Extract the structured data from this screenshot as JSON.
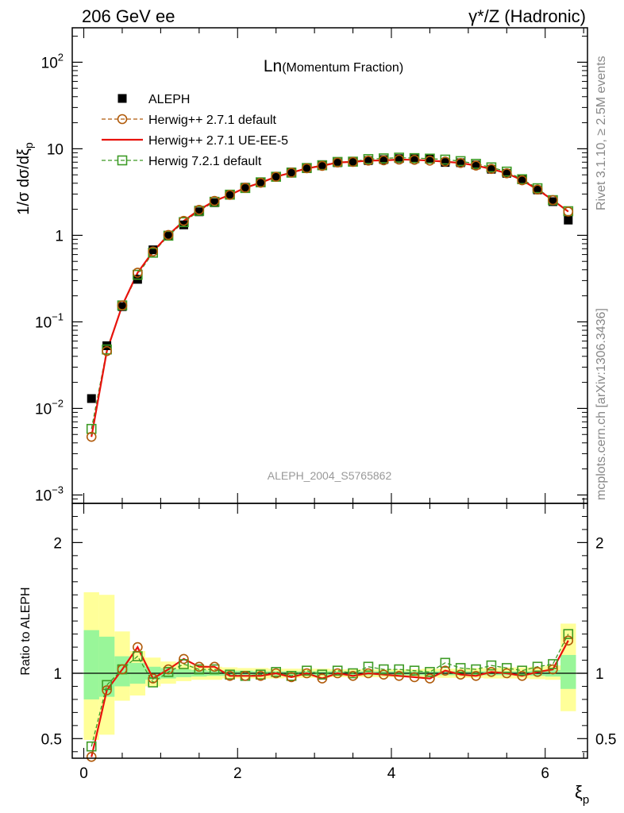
{
  "header": {
    "left": "206 GeV ee",
    "right": "γ*/Z (Hadronic)"
  },
  "side_labels": {
    "rivet": "Rivet 3.1.10, ≥ 2.5M events",
    "mcplots": "mcplots.cern.ch [arXiv:1306.3436]"
  },
  "plot_title": {
    "main": "Ln",
    "sub": "(Momentum Fraction)"
  },
  "watermark": "ALEPH_2004_S5765862",
  "colors": {
    "data": "#000000",
    "herwig_default": "#b05a0a",
    "herwig_ueee5": "#e8120c",
    "herwig7": "#3d9b25",
    "band_stat": "#99f699",
    "band_total": "#ffff99"
  },
  "chart_data": [
    {
      "type": "line",
      "panel": "main",
      "ylabel": "1/σ dσ/dξp",
      "yscale": "log",
      "ylim": [
        0.0008,
        250
      ],
      "xlim": [
        -0.15,
        6.55
      ],
      "y_ticklabels": [
        "10^-3",
        "10^-2",
        "10^-1",
        "1",
        "10",
        "10^2"
      ],
      "x": [
        0.1,
        0.3,
        0.5,
        0.7,
        0.9,
        1.1,
        1.3,
        1.5,
        1.7,
        1.9,
        2.1,
        2.3,
        2.5,
        2.7,
        2.9,
        3.1,
        3.3,
        3.5,
        3.7,
        3.9,
        4.1,
        4.3,
        4.5,
        4.7,
        4.9,
        5.1,
        5.3,
        5.5,
        5.7,
        5.9,
        6.1,
        6.3
      ],
      "series": [
        {
          "name": "ALEPH",
          "style": "data",
          "values": [
            0.013,
            0.053,
            0.15,
            0.31,
            0.68,
            0.98,
            1.32,
            1.87,
            2.38,
            2.98,
            3.6,
            4.12,
            4.72,
            5.4,
            5.9,
            6.55,
            6.9,
            7.1,
            7.3,
            7.5,
            7.7,
            7.65,
            7.6,
            6.95,
            6.9,
            6.5,
            5.8,
            5.2,
            4.4,
            3.35,
            2.45,
            1.5
          ]
        },
        {
          "name": "Herwig++ 2.7.1 default",
          "style": "circle-dashed",
          "values": [
            0.0047,
            0.046,
            0.155,
            0.37,
            0.65,
            1.01,
            1.47,
            1.97,
            2.5,
            2.93,
            3.55,
            4.05,
            4.75,
            5.3,
            5.95,
            6.35,
            6.95,
            7.05,
            7.3,
            7.35,
            7.5,
            7.45,
            7.3,
            7.1,
            6.85,
            6.4,
            5.85,
            5.2,
            4.33,
            3.38,
            2.55,
            1.88
          ]
        },
        {
          "name": "Herwig++ 2.7.1 UE-EE-5",
          "style": "solid",
          "values": [
            0.0047,
            0.046,
            0.155,
            0.37,
            0.65,
            1.01,
            1.47,
            1.97,
            2.5,
            2.93,
            3.55,
            4.05,
            4.75,
            5.3,
            5.95,
            6.35,
            6.95,
            7.05,
            7.3,
            7.35,
            7.5,
            7.45,
            7.3,
            7.1,
            6.85,
            6.4,
            5.85,
            5.2,
            4.33,
            3.38,
            2.55,
            1.88
          ]
        },
        {
          "name": "Herwig 7.2.1 default",
          "style": "square-dashed",
          "values": [
            0.0058,
            0.048,
            0.155,
            0.35,
            0.63,
            0.99,
            1.42,
            1.92,
            2.44,
            2.95,
            3.52,
            4.1,
            4.75,
            5.3,
            6.0,
            6.45,
            7.05,
            7.1,
            7.6,
            7.75,
            7.9,
            7.8,
            7.7,
            7.5,
            7.2,
            6.7,
            6.1,
            5.45,
            4.45,
            3.5,
            2.55,
            1.9
          ]
        }
      ]
    },
    {
      "type": "line",
      "panel": "ratio",
      "ylabel": "Ratio to ALEPH",
      "xlabel": "ξp",
      "ylim": [
        0.35,
        2.3
      ],
      "xlim": [
        -0.15,
        6.55
      ],
      "y_ticklabels": [
        "0.5",
        "1",
        "2"
      ],
      "x_ticklabels": [
        "0",
        "2",
        "4",
        "6"
      ],
      "x": [
        0.1,
        0.3,
        0.5,
        0.7,
        0.9,
        1.1,
        1.3,
        1.5,
        1.7,
        1.9,
        2.1,
        2.3,
        2.5,
        2.7,
        2.9,
        3.1,
        3.3,
        3.5,
        3.7,
        3.9,
        4.1,
        4.3,
        4.5,
        4.7,
        4.9,
        5.1,
        5.3,
        5.5,
        5.7,
        5.9,
        6.1,
        6.3
      ],
      "bands": {
        "total_lo": [
          0.49,
          0.53,
          0.79,
          0.83,
          0.9,
          0.92,
          0.94,
          0.95,
          0.95,
          0.96,
          0.96,
          0.96,
          0.96,
          0.965,
          0.965,
          0.965,
          0.97,
          0.97,
          0.97,
          0.97,
          0.97,
          0.97,
          0.97,
          0.965,
          0.965,
          0.965,
          0.96,
          0.96,
          0.96,
          0.955,
          0.95,
          0.71
        ],
        "total_hi": [
          1.62,
          1.6,
          1.32,
          1.17,
          1.12,
          1.09,
          1.07,
          1.06,
          1.05,
          1.045,
          1.04,
          1.04,
          1.035,
          1.035,
          1.035,
          1.035,
          1.03,
          1.03,
          1.03,
          1.03,
          1.03,
          1.03,
          1.035,
          1.035,
          1.035,
          1.04,
          1.04,
          1.045,
          1.045,
          1.05,
          1.06,
          1.38
        ],
        "stat_lo": [
          0.8,
          0.82,
          0.9,
          0.92,
          0.95,
          0.96,
          0.97,
          0.975,
          0.98,
          0.98,
          0.98,
          0.985,
          0.985,
          0.985,
          0.985,
          0.985,
          0.985,
          0.985,
          0.985,
          0.985,
          0.985,
          0.985,
          0.985,
          0.985,
          0.985,
          0.985,
          0.985,
          0.985,
          0.985,
          0.98,
          0.975,
          0.88
        ],
        "stat_hi": [
          1.33,
          1.28,
          1.13,
          1.08,
          1.05,
          1.04,
          1.03,
          1.025,
          1.02,
          1.02,
          1.02,
          1.015,
          1.015,
          1.015,
          1.015,
          1.015,
          1.015,
          1.015,
          1.015,
          1.015,
          1.015,
          1.015,
          1.015,
          1.015,
          1.015,
          1.015,
          1.015,
          1.015,
          1.015,
          1.02,
          1.025,
          1.14
        ]
      },
      "series": [
        {
          "name": "Herwig++ 2.7.1 default",
          "style": "circle-dashed",
          "values": [
            0.36,
            0.87,
            1.03,
            1.2,
            0.96,
            1.03,
            1.11,
            1.05,
            1.05,
            0.98,
            0.98,
            0.98,
            1.0,
            0.97,
            1.0,
            0.96,
            1.0,
            0.98,
            1.0,
            0.99,
            0.98,
            0.97,
            0.96,
            1.02,
            0.99,
            0.98,
            1.01,
            1.0,
            0.98,
            1.01,
            1.03,
            1.25
          ]
        },
        {
          "name": "Herwig++ 2.7.1 UE-EE-5",
          "style": "solid",
          "values": [
            0.36,
            0.87,
            1.03,
            1.2,
            0.96,
            1.03,
            1.11,
            1.05,
            1.05,
            0.98,
            0.98,
            0.98,
            1.0,
            0.97,
            1.0,
            0.96,
            1.0,
            0.98,
            1.0,
            0.99,
            0.98,
            0.97,
            0.96,
            1.02,
            0.99,
            0.98,
            1.01,
            1.0,
            0.98,
            1.01,
            1.03,
            1.25
          ]
        },
        {
          "name": "Herwig 7.2.1 default",
          "style": "square-dashed",
          "values": [
            0.44,
            0.91,
            1.03,
            1.13,
            0.93,
            1.01,
            1.07,
            1.03,
            1.03,
            0.99,
            0.98,
            0.99,
            1.01,
            0.98,
            1.02,
            0.99,
            1.02,
            1.0,
            1.05,
            1.03,
            1.03,
            1.02,
            1.01,
            1.08,
            1.04,
            1.03,
            1.06,
            1.04,
            1.02,
            1.05,
            1.07,
            1.3
          ]
        }
      ]
    }
  ]
}
